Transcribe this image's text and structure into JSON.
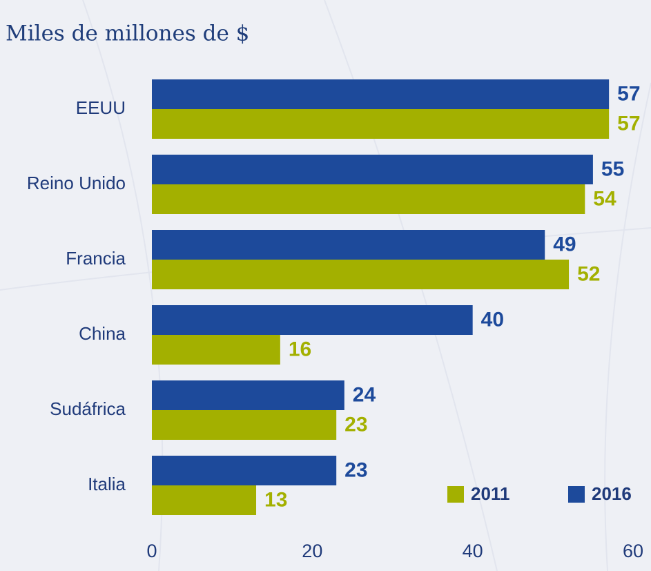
{
  "chart_data": {
    "type": "hbar",
    "subtitle": "Miles de millones de $",
    "categories": [
      "EEUU",
      "Reino Unido",
      "Francia",
      "China",
      "Sudáfrica",
      "Italia"
    ],
    "series": [
      {
        "name": "2011",
        "color": "#a3b000",
        "values": [
          57,
          54,
          52,
          16,
          23,
          13
        ]
      },
      {
        "name": "2016",
        "color": "#1d4a9b",
        "values": [
          57,
          55,
          49,
          40,
          24,
          23
        ]
      }
    ],
    "xlim": [
      0,
      60
    ],
    "xticks": [
      0,
      20,
      40,
      60
    ],
    "legend": "lower right"
  }
}
